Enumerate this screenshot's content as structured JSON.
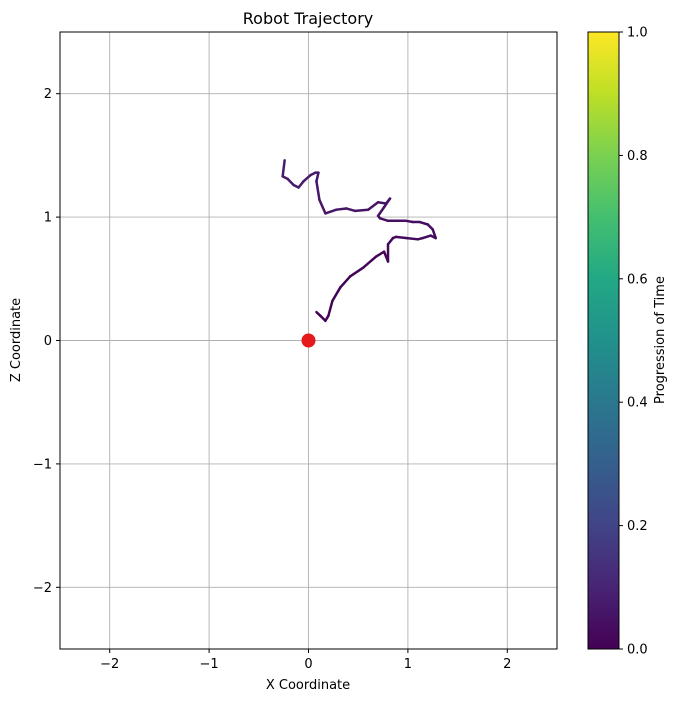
{
  "chart_data": {
    "type": "line",
    "title": "Robot Trajectory",
    "xlabel": "X Coordinate",
    "ylabel": "Z Coordinate",
    "xlim": [
      -2.5,
      2.5
    ],
    "ylim": [
      -2.5,
      2.5
    ],
    "xticks": [
      -2,
      -1,
      0,
      1,
      2
    ],
    "yticks": [
      -2,
      -1,
      0,
      1,
      2
    ],
    "grid": true,
    "colormap": "viridis",
    "colorbar": {
      "label": "Progression of Time",
      "range": [
        0.0,
        1.0
      ],
      "ticks": [
        "0.0",
        "0.2",
        "0.4",
        "0.6",
        "0.8",
        "1.0"
      ]
    },
    "marker": {
      "x": 0.0,
      "z": 0.0,
      "color": "#e41a1c"
    },
    "trajectory": {
      "x": [
        0.08,
        0.12,
        0.17,
        0.2,
        0.24,
        0.32,
        0.42,
        0.55,
        0.68,
        0.76,
        0.8,
        0.8,
        0.85,
        0.88,
        0.99,
        1.1,
        1.15,
        1.23,
        1.28,
        1.25,
        1.2,
        1.12,
        1.05,
        0.98,
        0.88,
        0.8,
        0.72,
        0.7,
        0.76,
        0.82,
        0.78,
        0.7,
        0.6,
        0.47,
        0.38,
        0.28,
        0.17,
        0.11,
        0.08,
        0.1,
        0.07,
        0.02,
        -0.05,
        -0.1,
        -0.15,
        -0.21,
        -0.26,
        -0.24
      ],
      "z": [
        0.23,
        0.2,
        0.16,
        0.2,
        0.32,
        0.43,
        0.52,
        0.59,
        0.68,
        0.72,
        0.64,
        0.78,
        0.83,
        0.84,
        0.83,
        0.82,
        0.83,
        0.85,
        0.83,
        0.9,
        0.94,
        0.96,
        0.96,
        0.97,
        0.97,
        0.97,
        0.99,
        1.01,
        1.08,
        1.15,
        1.11,
        1.12,
        1.06,
        1.05,
        1.07,
        1.06,
        1.03,
        1.14,
        1.29,
        1.36,
        1.36,
        1.34,
        1.29,
        1.24,
        1.26,
        1.31,
        1.33,
        1.46
      ]
    }
  }
}
